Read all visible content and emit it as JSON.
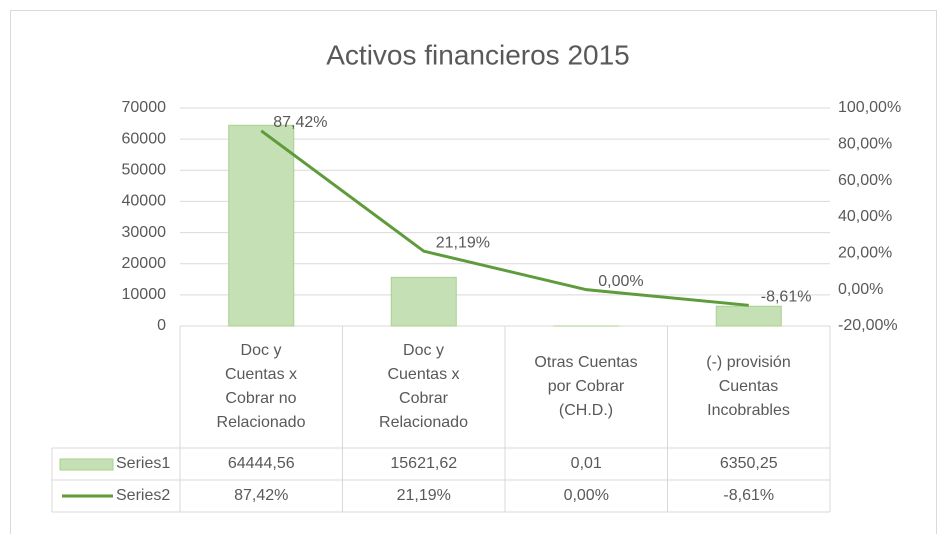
{
  "chart_data": {
    "type": "bar_line",
    "title": "Activos financieros 2015",
    "categories": [
      "Doc y Cuentas x Cobrar no Relacionado",
      "Doc y Cuentas x Cobrar Relacionado",
      "Otras Cuentas por Cobrar (CH.D.)",
      "(-) provisión Cuentas Incobrables"
    ],
    "series": [
      {
        "name": "Series1",
        "type": "bar",
        "color": "#c5e0b4",
        "values": [
          64444.56,
          15621.62,
          0.01,
          6350.25
        ],
        "value_labels": [
          "64444,56",
          "15621,62",
          "0,01",
          "6350,25"
        ]
      },
      {
        "name": "Series2",
        "type": "line",
        "axis": "y2",
        "color": "#5e9b3a",
        "values": [
          87.42,
          21.19,
          0.0,
          -8.61
        ],
        "value_labels": [
          "87,42%",
          "21,19%",
          "0,00%",
          "-8,61%"
        ]
      }
    ],
    "ylim": [
      0,
      70000
    ],
    "yticks": [
      0,
      10000,
      20000,
      30000,
      40000,
      50000,
      60000,
      70000
    ],
    "y2lim": [
      -20,
      100
    ],
    "y2ticks": [
      {
        "value": -20,
        "label": "-20,00%"
      },
      {
        "value": 0,
        "label": "0,00%"
      },
      {
        "value": 20,
        "label": "20,00%"
      },
      {
        "value": 40,
        "label": "40,00%"
      },
      {
        "value": 60,
        "label": "60,00%"
      },
      {
        "value": 80,
        "label": "80,00%"
      },
      {
        "value": 100,
        "label": "100,00%"
      }
    ],
    "grid": true,
    "data_table": true
  }
}
